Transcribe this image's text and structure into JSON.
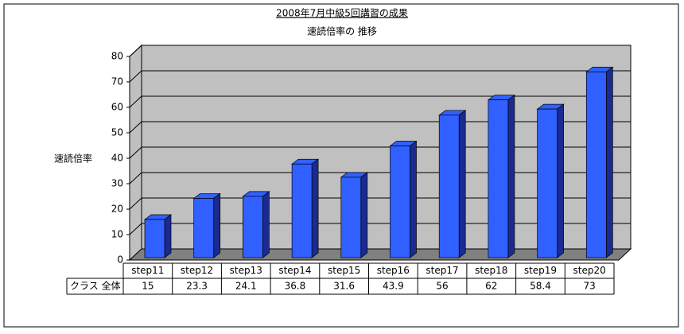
{
  "chart_data": {
    "type": "bar3d",
    "title": "2008年7月中級5回講習の成果",
    "subtitle": "速読倍率の 推移",
    "y_label": "速読倍率",
    "categories": [
      "step11",
      "step12",
      "step13",
      "step14",
      "step15",
      "step16",
      "step17",
      "step18",
      "step19",
      "step20"
    ],
    "series": [
      {
        "name": "クラス 全体",
        "color": "#3060ff",
        "values": [
          15,
          23.3,
          24.1,
          36.8,
          31.6,
          43.9,
          56,
          62,
          58.4,
          73
        ]
      }
    ],
    "ylim": [
      0,
      80
    ],
    "yticks": [
      0,
      10,
      20,
      30,
      40,
      50,
      60,
      70,
      80
    ],
    "grid": true,
    "data_table": true
  }
}
